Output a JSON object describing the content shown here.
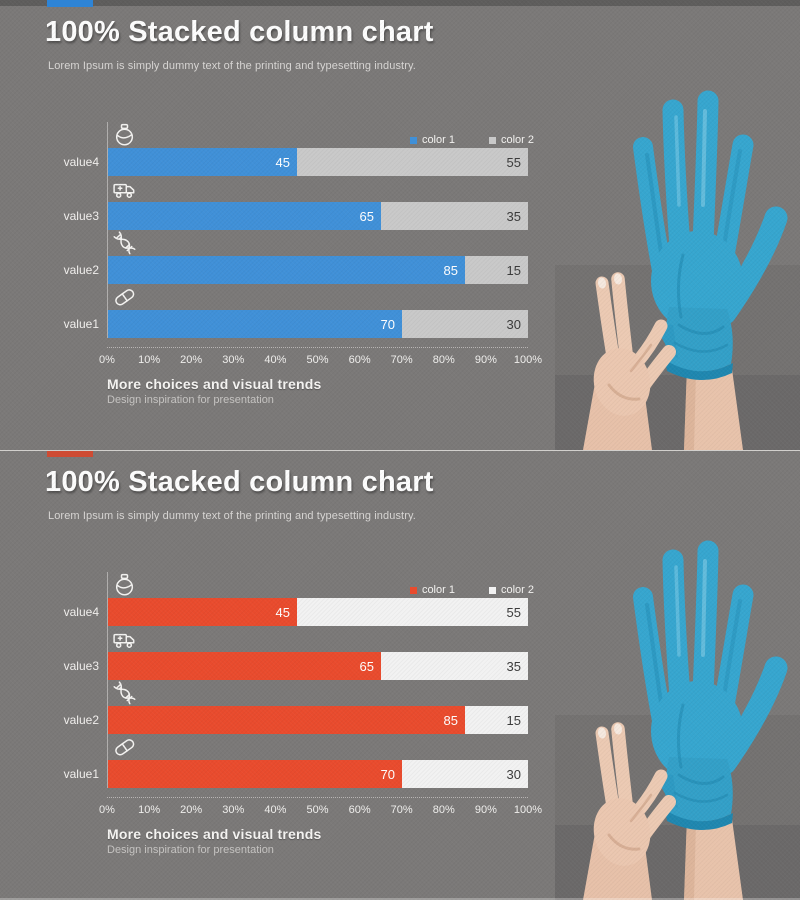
{
  "slides": [
    {
      "accent_color": "#2e84d6",
      "title": "100% Stacked column chart",
      "subtitle": "Lorem Ipsum is simply dummy text of the printing and typesetting industry.",
      "footer_title": "More choices and visual trends",
      "footer_subtitle": "Design inspiration for presentation"
    },
    {
      "accent_color": "#ce4b33",
      "title": "100% Stacked column chart",
      "subtitle": "Lorem Ipsum is simply dummy text of the printing and typesetting industry.",
      "footer_title": "More choices and visual trends",
      "footer_subtitle": "Design inspiration for presentation"
    }
  ],
  "chart_data": [
    {
      "type": "bar",
      "orientation": "horizontal",
      "stacked": true,
      "percent_of_total": true,
      "categories": [
        "value4",
        "value3",
        "value2",
        "value1"
      ],
      "category_icons": [
        "medicine-jar-icon",
        "ambulance-icon",
        "dna-icon",
        "pill-icon"
      ],
      "series": [
        {
          "name": "color 1",
          "color": "#4090d8",
          "label_color": "#ffffff",
          "values": [
            45,
            65,
            85,
            70
          ]
        },
        {
          "name": "color 2",
          "color": "#c9c9c9",
          "label_color": "#3b3b3b",
          "values": [
            55,
            35,
            15,
            30
          ]
        }
      ],
      "x_ticks": [
        "0%",
        "10%",
        "20%",
        "30%",
        "40%",
        "50%",
        "60%",
        "70%",
        "80%",
        "90%",
        "100%"
      ],
      "xlim": [
        0,
        100
      ],
      "legend_position": "top-right",
      "grid": "dotted-baseline-only"
    },
    {
      "type": "bar",
      "orientation": "horizontal",
      "stacked": true,
      "percent_of_total": true,
      "categories": [
        "value4",
        "value3",
        "value2",
        "value1"
      ],
      "category_icons": [
        "medicine-jar-icon",
        "ambulance-icon",
        "dna-icon",
        "pill-icon"
      ],
      "series": [
        {
          "name": "color 1",
          "color": "#e94b2d",
          "label_color": "#ffffff",
          "values": [
            45,
            65,
            85,
            70
          ]
        },
        {
          "name": "color 2",
          "color": "#f2f2f2",
          "label_color": "#3b3b3b",
          "values": [
            55,
            35,
            15,
            30
          ]
        }
      ],
      "x_ticks": [
        "0%",
        "10%",
        "20%",
        "30%",
        "40%",
        "50%",
        "60%",
        "70%",
        "80%",
        "90%",
        "100%"
      ],
      "xlim": [
        0,
        100
      ],
      "legend_position": "top-right",
      "grid": "dotted-baseline-only"
    }
  ],
  "photo": {
    "alt": "two hands pulling on a blue nitrile glove",
    "glove_color": "#36a6cf",
    "skin_color": "#ebc7b0"
  }
}
